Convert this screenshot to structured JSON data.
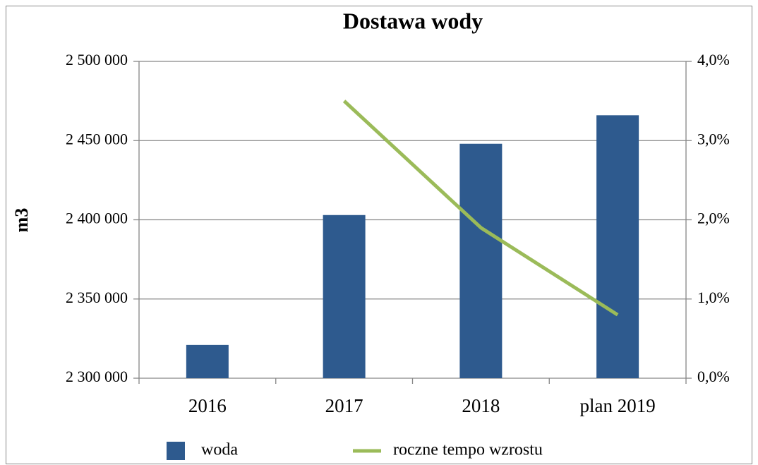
{
  "chart_data": {
    "type": "bar",
    "title": "Dostawa wody",
    "y_label": "m3",
    "categories": [
      "2016",
      "2017",
      "2018",
      "plan 2019"
    ],
    "series": [
      {
        "name": "woda",
        "color": "#2e5a8e",
        "values": [
          2321000,
          2403000,
          2448000,
          2466000
        ]
      },
      {
        "name": "roczne tempo wzrostu",
        "type": "line",
        "axis": "y2",
        "color": "#9bbb59",
        "values": [
          null,
          3.5,
          1.9,
          0.8
        ]
      }
    ],
    "ylim": [
      2300000,
      2500000
    ],
    "yticks": [
      {
        "value": 2300000,
        "label": "2 300 000"
      },
      {
        "value": 2350000,
        "label": "2 350 000"
      },
      {
        "value": 2400000,
        "label": "2 400 000"
      },
      {
        "value": 2450000,
        "label": "2 450 000"
      },
      {
        "value": 2500000,
        "label": "2 500 000"
      }
    ],
    "y2lim": [
      0,
      4
    ],
    "y2ticks": [
      {
        "value": 0,
        "label": "0,0%"
      },
      {
        "value": 1,
        "label": "1,0%"
      },
      {
        "value": 2,
        "label": "2,0%"
      },
      {
        "value": 3,
        "label": "3,0%"
      },
      {
        "value": 4,
        "label": "4,0%"
      }
    ],
    "grid": true,
    "legend": "bottom"
  }
}
